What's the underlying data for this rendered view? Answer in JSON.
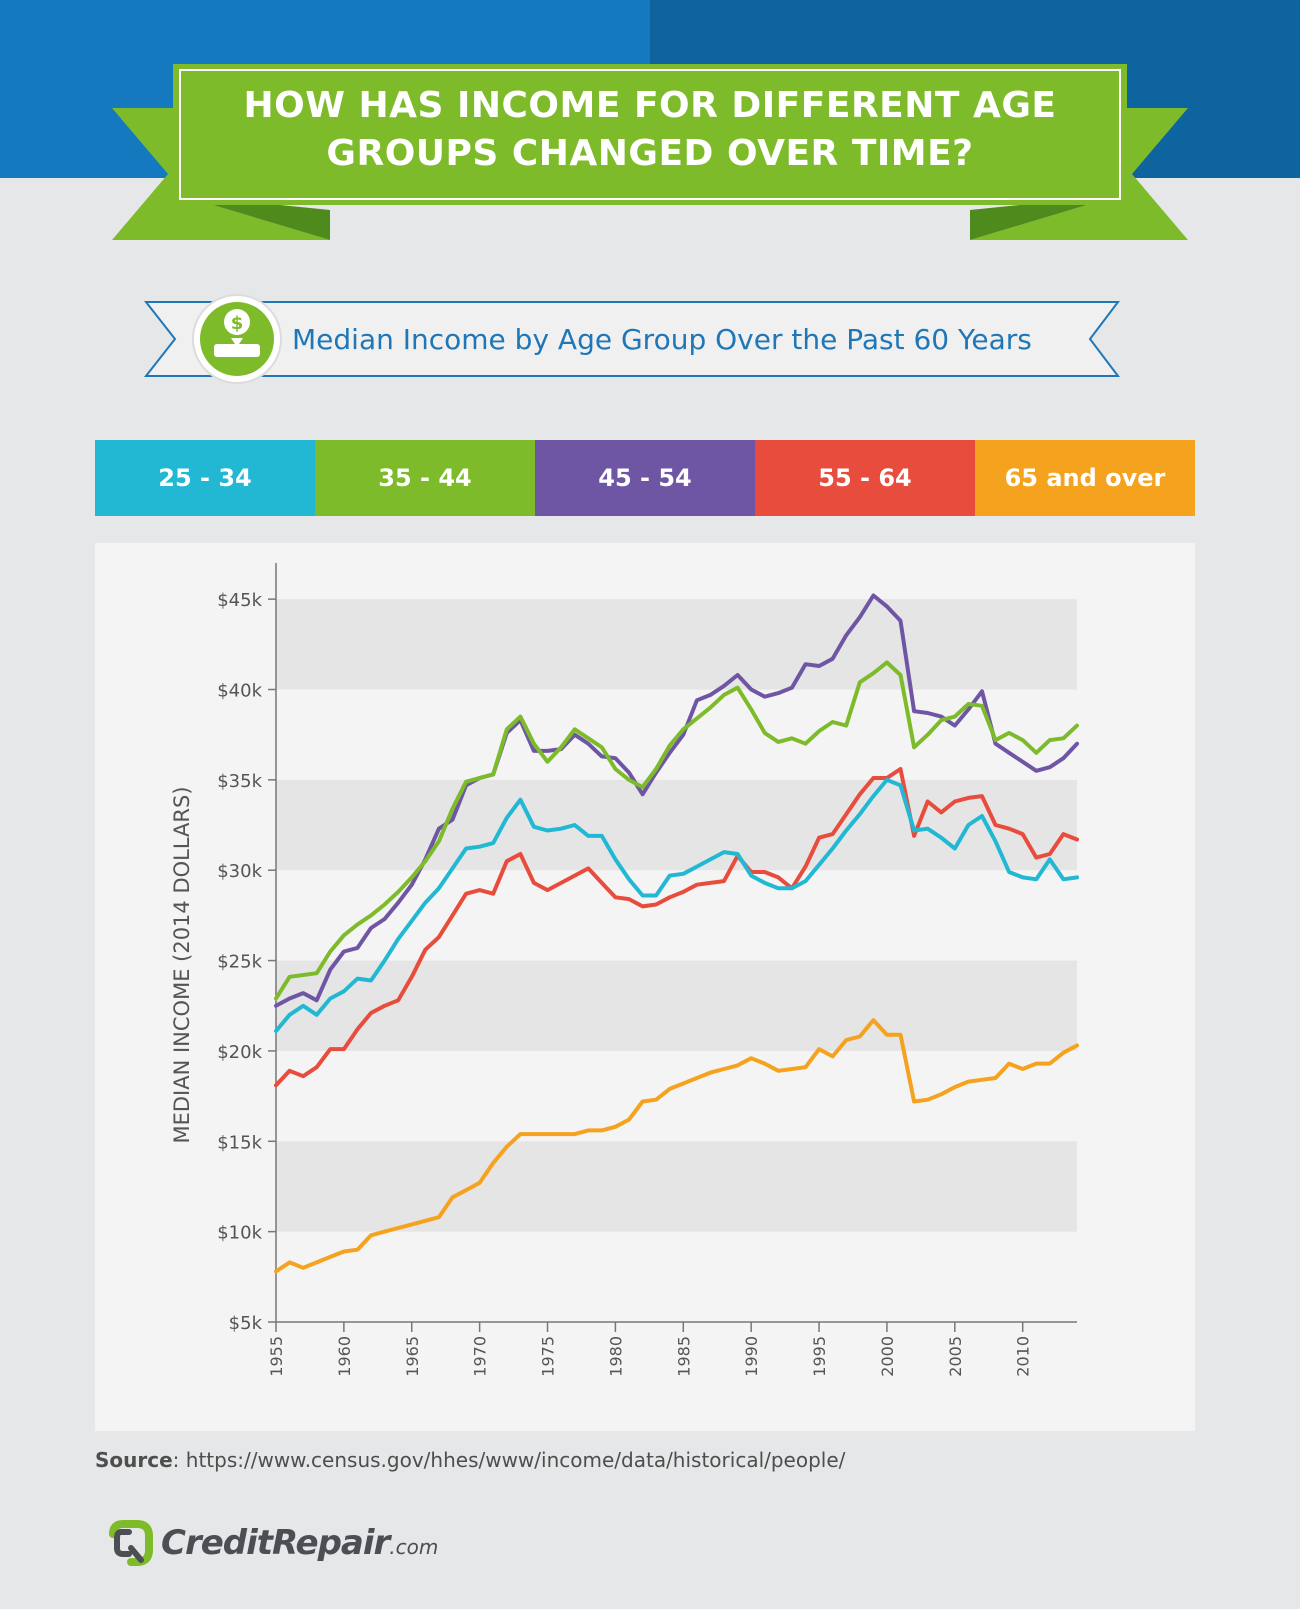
{
  "header": {
    "title_line1": "HOW HAS INCOME FOR DIFFERENT AGE",
    "title_line2": "GROUPS CHANGED OVER TIME?"
  },
  "subtitle": {
    "text": "Median Income by Age Group Over the Past 60 Years",
    "icon": "money-bag-icon"
  },
  "colors": {
    "band_left": "#1479bf",
    "band_right": "#0e649f",
    "ribbon": "#7dbb2a",
    "ribbon_dark": "#4f8a1c",
    "subtitle_text": "#1f77b8"
  },
  "chart_data": {
    "type": "line",
    "ylabel": "MEDIAN INCOME (2014 DOLLARS)",
    "xlabel": "",
    "title": "",
    "ylim": [
      5,
      47
    ],
    "xlim": [
      1955,
      2014
    ],
    "y_ticks": [
      5,
      10,
      15,
      20,
      25,
      30,
      35,
      40,
      45
    ],
    "y_tick_labels": [
      "$5k",
      "$10k",
      "$15k",
      "$20k",
      "$25k",
      "$30k",
      "$35k",
      "$40k",
      "$45k"
    ],
    "x_ticks": [
      1955,
      1960,
      1965,
      1970,
      1975,
      1980,
      1985,
      1990,
      1995,
      2000,
      2005,
      2010
    ],
    "x_tick_labels": [
      "1955",
      "1960",
      "1965",
      "1970",
      "1975",
      "1980",
      "1985",
      "1990",
      "1995",
      "2000",
      "2005",
      "2010"
    ],
    "grid": true,
    "legend_position": "top",
    "x": [
      1955,
      1956,
      1957,
      1958,
      1959,
      1960,
      1961,
      1962,
      1963,
      1964,
      1965,
      1966,
      1967,
      1968,
      1969,
      1970,
      1971,
      1972,
      1973,
      1974,
      1975,
      1976,
      1977,
      1978,
      1979,
      1980,
      1981,
      1982,
      1983,
      1984,
      1985,
      1986,
      1987,
      1988,
      1989,
      1990,
      1991,
      1992,
      1993,
      1994,
      1995,
      1996,
      1997,
      1998,
      1999,
      2000,
      2001,
      2002,
      2003,
      2004,
      2005,
      2006,
      2007,
      2008,
      2009,
      2010,
      2011,
      2012,
      2013,
      2014
    ],
    "series": [
      {
        "name": "25 - 34",
        "color": "#22b8d4",
        "values": [
          21.1,
          22.0,
          22.5,
          22.0,
          22.9,
          23.3,
          24.0,
          23.9,
          25.0,
          26.2,
          27.2,
          28.2,
          29.0,
          30.1,
          31.2,
          31.3,
          31.5,
          32.9,
          33.9,
          32.4,
          32.2,
          32.3,
          32.5,
          31.9,
          31.9,
          30.6,
          29.5,
          28.6,
          28.6,
          29.7,
          29.8,
          30.2,
          30.6,
          31.0,
          30.9,
          29.7,
          29.3,
          29.0,
          29.0,
          29.4,
          30.3,
          31.2,
          32.2,
          33.1,
          34.1,
          35.0,
          34.7,
          32.2,
          32.3,
          31.8,
          31.2,
          32.5,
          33.0,
          31.6,
          29.9,
          29.6,
          29.5,
          30.6,
          29.5,
          29.6
        ]
      },
      {
        "name": "35 - 44",
        "color": "#7dbb2a",
        "values": [
          22.9,
          24.1,
          24.2,
          24.3,
          25.5,
          26.4,
          27.0,
          27.5,
          28.1,
          28.8,
          29.6,
          30.5,
          31.6,
          33.4,
          34.9,
          35.1,
          35.3,
          37.8,
          38.5,
          37.0,
          36.0,
          36.8,
          37.8,
          37.3,
          36.8,
          35.6,
          35.0,
          34.6,
          35.6,
          36.9,
          37.8,
          38.4,
          39.0,
          39.7,
          40.1,
          38.9,
          37.6,
          37.1,
          37.3,
          37.0,
          37.7,
          38.2,
          38.0,
          40.4,
          40.9,
          41.5,
          40.8,
          36.8,
          37.5,
          38.3,
          38.5,
          39.2,
          39.1,
          37.2,
          37.6,
          37.2,
          36.5,
          37.2,
          37.3,
          38.0
        ]
      },
      {
        "name": "45 - 54",
        "color": "#6f56a5",
        "values": [
          22.5,
          22.9,
          23.2,
          22.8,
          24.5,
          25.5,
          25.7,
          26.8,
          27.3,
          28.2,
          29.2,
          30.6,
          32.3,
          32.8,
          34.7,
          35.1,
          35.3,
          37.6,
          38.3,
          36.6,
          36.6,
          36.7,
          37.5,
          37.0,
          36.3,
          36.2,
          35.4,
          34.2,
          35.4,
          36.5,
          37.5,
          39.4,
          39.7,
          40.2,
          40.8,
          40.0,
          39.6,
          39.8,
          40.1,
          41.4,
          41.3,
          41.7,
          43.0,
          44.0,
          45.2,
          44.6,
          43.8,
          38.8,
          38.7,
          38.5,
          38.0,
          38.9,
          39.9,
          37.0,
          36.5,
          36.0,
          35.5,
          35.7,
          36.2,
          37.0
        ]
      },
      {
        "name": "55 - 64",
        "color": "#e84c3d",
        "values": [
          18.1,
          18.9,
          18.6,
          19.1,
          20.1,
          20.1,
          21.2,
          22.1,
          22.5,
          22.8,
          24.1,
          25.6,
          26.3,
          27.5,
          28.7,
          28.9,
          28.7,
          30.5,
          30.9,
          29.3,
          28.9,
          29.3,
          29.7,
          30.1,
          29.3,
          28.5,
          28.4,
          28.0,
          28.1,
          28.5,
          28.8,
          29.2,
          29.3,
          29.4,
          30.8,
          29.9,
          29.9,
          29.6,
          29.0,
          30.2,
          31.8,
          32.0,
          33.1,
          34.2,
          35.1,
          35.1,
          35.6,
          31.9,
          33.8,
          33.2,
          33.8,
          34.0,
          34.1,
          32.5,
          32.3,
          32.0,
          30.7,
          30.9,
          32.0,
          31.7
        ]
      },
      {
        "name": "65 and over",
        "color": "#f5a21e",
        "values": [
          7.8,
          8.3,
          8.0,
          8.3,
          8.6,
          8.9,
          9.0,
          9.8,
          10.0,
          10.2,
          10.4,
          10.6,
          10.8,
          11.9,
          12.3,
          12.7,
          13.8,
          14.7,
          15.4,
          15.4,
          15.4,
          15.4,
          15.4,
          15.6,
          15.6,
          15.8,
          16.2,
          17.2,
          17.3,
          17.9,
          18.2,
          18.5,
          18.8,
          19.0,
          19.2,
          19.6,
          19.3,
          18.9,
          19.0,
          19.1,
          20.1,
          19.7,
          20.6,
          20.8,
          21.7,
          20.9,
          20.9,
          17.2,
          17.3,
          17.6,
          18.0,
          18.3,
          18.4,
          18.5,
          19.3,
          19.0,
          19.3,
          19.3,
          19.9,
          20.3
        ]
      }
    ]
  },
  "source": {
    "label": "Source",
    "url": ": https://www.census.gov/hhes/www/income/data/historical/people/"
  },
  "logo": {
    "name": "CreditRepair",
    "suffix": ".com",
    "icon": "credit-repair-logo-icon"
  }
}
